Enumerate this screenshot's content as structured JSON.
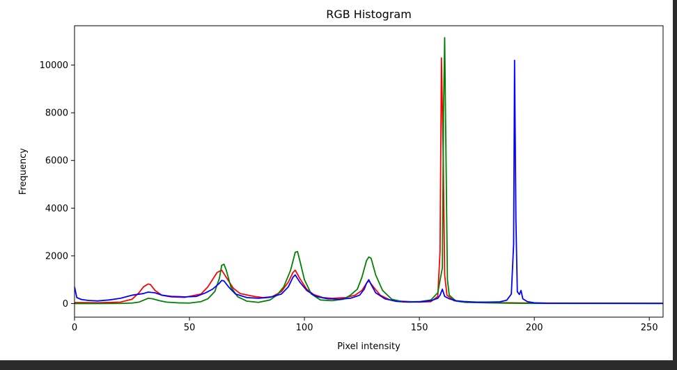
{
  "chart_data": {
    "type": "line",
    "title": "RGB Histogram",
    "xlabel": "Pixel intensity",
    "ylabel": "Frequency",
    "xlim": [
      0,
      256
    ],
    "ylim": [
      -570,
      11650
    ],
    "xticks": [
      0,
      50,
      100,
      150,
      200,
      250
    ],
    "yticks": [
      0,
      2000,
      4000,
      6000,
      8000,
      10000
    ],
    "grid": false,
    "legend": "none",
    "series": [
      {
        "color": "#ff0000",
        "points": [
          [
            0,
            40
          ],
          [
            10,
            35
          ],
          [
            20,
            60
          ],
          [
            25,
            180
          ],
          [
            28,
            450
          ],
          [
            30,
            700
          ],
          [
            32,
            820
          ],
          [
            33,
            800
          ],
          [
            35,
            550
          ],
          [
            38,
            350
          ],
          [
            42,
            280
          ],
          [
            48,
            260
          ],
          [
            55,
            400
          ],
          [
            58,
            700
          ],
          [
            60,
            1000
          ],
          [
            62,
            1300
          ],
          [
            64,
            1400
          ],
          [
            66,
            1100
          ],
          [
            69,
            650
          ],
          [
            72,
            420
          ],
          [
            75,
            360
          ],
          [
            78,
            300
          ],
          [
            82,
            250
          ],
          [
            86,
            290
          ],
          [
            90,
            500
          ],
          [
            93,
            900
          ],
          [
            95,
            1300
          ],
          [
            96,
            1400
          ],
          [
            98,
            1050
          ],
          [
            101,
            600
          ],
          [
            104,
            380
          ],
          [
            108,
            250
          ],
          [
            112,
            220
          ],
          [
            118,
            250
          ],
          [
            122,
            350
          ],
          [
            125,
            550
          ],
          [
            127,
            850
          ],
          [
            128,
            950
          ],
          [
            130,
            700
          ],
          [
            133,
            350
          ],
          [
            137,
            160
          ],
          [
            142,
            100
          ],
          [
            150,
            60
          ],
          [
            155,
            80
          ],
          [
            158,
            300
          ],
          [
            159,
            2200
          ],
          [
            159.6,
            10300
          ],
          [
            160.4,
            6000
          ],
          [
            161,
            1200
          ],
          [
            162,
            350
          ],
          [
            165,
            120
          ],
          [
            170,
            60
          ],
          [
            180,
            40
          ],
          [
            190,
            30
          ],
          [
            200,
            20
          ],
          [
            256,
            10
          ]
        ]
      },
      {
        "color": "#008000",
        "points": [
          [
            0,
            0
          ],
          [
            10,
            0
          ],
          [
            20,
            5
          ],
          [
            25,
            20
          ],
          [
            28,
            60
          ],
          [
            30,
            140
          ],
          [
            32,
            220
          ],
          [
            34,
            200
          ],
          [
            37,
            120
          ],
          [
            40,
            60
          ],
          [
            45,
            30
          ],
          [
            50,
            20
          ],
          [
            55,
            80
          ],
          [
            58,
            200
          ],
          [
            61,
            500
          ],
          [
            63,
            1050
          ],
          [
            64,
            1600
          ],
          [
            65,
            1650
          ],
          [
            66,
            1400
          ],
          [
            68,
            700
          ],
          [
            71,
            280
          ],
          [
            75,
            100
          ],
          [
            80,
            50
          ],
          [
            85,
            150
          ],
          [
            88,
            350
          ],
          [
            91,
            700
          ],
          [
            94,
            1400
          ],
          [
            96,
            2150
          ],
          [
            97,
            2180
          ],
          [
            98,
            1800
          ],
          [
            100,
            1000
          ],
          [
            103,
            400
          ],
          [
            107,
            150
          ],
          [
            112,
            120
          ],
          [
            117,
            180
          ],
          [
            120,
            350
          ],
          [
            123,
            600
          ],
          [
            125,
            1100
          ],
          [
            127,
            1800
          ],
          [
            128,
            1950
          ],
          [
            129,
            1900
          ],
          [
            131,
            1200
          ],
          [
            134,
            550
          ],
          [
            138,
            180
          ],
          [
            143,
            70
          ],
          [
            150,
            80
          ],
          [
            155,
            150
          ],
          [
            158,
            450
          ],
          [
            160,
            1500
          ],
          [
            160.5,
            8000
          ],
          [
            161,
            11150
          ],
          [
            161.6,
            6000
          ],
          [
            162.2,
            1000
          ],
          [
            163,
            350
          ],
          [
            166,
            100
          ],
          [
            170,
            50
          ],
          [
            180,
            30
          ],
          [
            190,
            15
          ],
          [
            200,
            5
          ],
          [
            256,
            0
          ]
        ]
      },
      {
        "color": "#0000ff",
        "points": [
          [
            0,
            700
          ],
          [
            1,
            250
          ],
          [
            3,
            170
          ],
          [
            6,
            130
          ],
          [
            10,
            110
          ],
          [
            15,
            150
          ],
          [
            20,
            220
          ],
          [
            25,
            350
          ],
          [
            30,
            420
          ],
          [
            32,
            480
          ],
          [
            35,
            450
          ],
          [
            38,
            350
          ],
          [
            42,
            300
          ],
          [
            48,
            280
          ],
          [
            53,
            300
          ],
          [
            57,
            450
          ],
          [
            60,
            600
          ],
          [
            63,
            850
          ],
          [
            64,
            970
          ],
          [
            65,
            950
          ],
          [
            67,
            700
          ],
          [
            70,
            400
          ],
          [
            75,
            250
          ],
          [
            80,
            220
          ],
          [
            85,
            260
          ],
          [
            90,
            400
          ],
          [
            93,
            700
          ],
          [
            95,
            1100
          ],
          [
            96,
            1200
          ],
          [
            98,
            900
          ],
          [
            101,
            550
          ],
          [
            105,
            300
          ],
          [
            110,
            200
          ],
          [
            115,
            180
          ],
          [
            120,
            220
          ],
          [
            124,
            350
          ],
          [
            126,
            600
          ],
          [
            127,
            850
          ],
          [
            128,
            1000
          ],
          [
            129,
            800
          ],
          [
            131,
            450
          ],
          [
            135,
            200
          ],
          [
            140,
            90
          ],
          [
            145,
            60
          ],
          [
            150,
            70
          ],
          [
            155,
            120
          ],
          [
            158,
            220
          ],
          [
            159,
            350
          ],
          [
            160,
            600
          ],
          [
            161,
            300
          ],
          [
            163,
            200
          ],
          [
            166,
            120
          ],
          [
            170,
            80
          ],
          [
            175,
            60
          ],
          [
            180,
            60
          ],
          [
            185,
            70
          ],
          [
            188,
            140
          ],
          [
            190,
            400
          ],
          [
            191,
            2500
          ],
          [
            191.4,
            10200
          ],
          [
            192,
            3500
          ],
          [
            192.6,
            500
          ],
          [
            193.5,
            380
          ],
          [
            194.2,
            550
          ],
          [
            195,
            200
          ],
          [
            197,
            80
          ],
          [
            200,
            30
          ],
          [
            205,
            15
          ],
          [
            256,
            10
          ]
        ]
      }
    ]
  }
}
